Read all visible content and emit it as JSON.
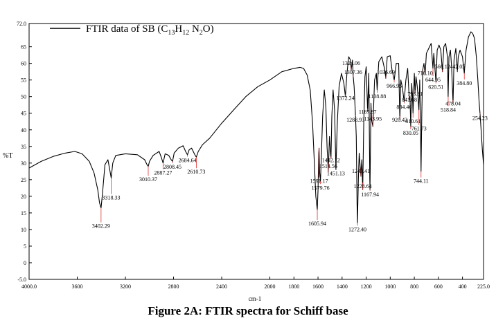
{
  "caption": "Figure 2A: FTIR spectra for Schiff base",
  "chart_data": {
    "type": "line",
    "title": "",
    "xlabel": "cm-1",
    "ylabel": "%T",
    "xlim": [
      4000,
      225
    ],
    "ylim": [
      -5,
      72
    ],
    "x_ticks": [
      {
        "value": 4000,
        "label": "4000.0"
      },
      {
        "value": 3600,
        "label": "3600"
      },
      {
        "value": 3200,
        "label": "3200"
      },
      {
        "value": 2800,
        "label": "2800"
      },
      {
        "value": 2400,
        "label": "2400"
      },
      {
        "value": 2000,
        "label": "2000"
      },
      {
        "value": 1800,
        "label": "1800"
      },
      {
        "value": 1600,
        "label": "1600"
      },
      {
        "value": 1400,
        "label": "1400"
      },
      {
        "value": 1200,
        "label": "1200"
      },
      {
        "value": 1000,
        "label": "1000"
      },
      {
        "value": 800,
        "label": "800"
      },
      {
        "value": 600,
        "label": "600"
      },
      {
        "value": 400,
        "label": "400"
      },
      {
        "value": 225,
        "label": "225.0"
      }
    ],
    "y_ticks": [
      {
        "value": -5,
        "label": "-5.0"
      },
      {
        "value": 0,
        "label": "0"
      },
      {
        "value": 5,
        "label": "5"
      },
      {
        "value": 10,
        "label": "10"
      },
      {
        "value": 15,
        "label": "15"
      },
      {
        "value": 20,
        "label": "20"
      },
      {
        "value": 25,
        "label": "25"
      },
      {
        "value": 30,
        "label": "30"
      },
      {
        "value": 35,
        "label": "35"
      },
      {
        "value": 40,
        "label": "40"
      },
      {
        "value": 45,
        "label": "45"
      },
      {
        "value": 50,
        "label": "50"
      },
      {
        "value": 55,
        "label": "55"
      },
      {
        "value": 60,
        "label": "60"
      },
      {
        "value": 65,
        "label": "65"
      },
      {
        "value": 72,
        "label": "72.0"
      }
    ],
    "legend": {
      "placement": "top-left",
      "text_main": "FTIR data of SB (C",
      "formula_parts": [
        "13",
        "H",
        "12",
        " N",
        "2",
        "O)"
      ]
    },
    "series": [
      {
        "points": [
          [
            4000,
            28.5
          ],
          [
            3900,
            30.5
          ],
          [
            3800,
            32.0
          ],
          [
            3700,
            33.0
          ],
          [
            3620,
            33.5
          ],
          [
            3560,
            32.8
          ],
          [
            3500,
            30.5
          ],
          [
            3460,
            27.0
          ],
          [
            3430,
            22.0
          ],
          [
            3415,
            18.0
          ],
          [
            3402.29,
            16.5
          ],
          [
            3390,
            21.0
          ],
          [
            3370,
            29.5
          ],
          [
            3345,
            31.0
          ],
          [
            3330,
            28.0
          ],
          [
            3318.33,
            25.5
          ],
          [
            3305,
            30.0
          ],
          [
            3280,
            32.3
          ],
          [
            3200,
            32.8
          ],
          [
            3100,
            32.5
          ],
          [
            3040,
            31.0
          ],
          [
            3020,
            29.5
          ],
          [
            3010.37,
            29.0
          ],
          [
            3000,
            30.5
          ],
          [
            2970,
            32.3
          ],
          [
            2920,
            33.5
          ],
          [
            2900,
            31.5
          ],
          [
            2887.27,
            30.0
          ],
          [
            2870,
            32.8
          ],
          [
            2840,
            32.3
          ],
          [
            2820,
            31.0
          ],
          [
            2808.45,
            30.5
          ],
          [
            2795,
            33.0
          ],
          [
            2760,
            34.5
          ],
          [
            2720,
            35.2
          ],
          [
            2700,
            33.5
          ],
          [
            2684.64,
            32.5
          ],
          [
            2670,
            34.0
          ],
          [
            2650,
            34.5
          ],
          [
            2630,
            33.0
          ],
          [
            2620,
            32.3
          ],
          [
            2610.73,
            31.8
          ],
          [
            2595,
            33.5
          ],
          [
            2560,
            35.5
          ],
          [
            2500,
            37.5
          ],
          [
            2400,
            42.0
          ],
          [
            2300,
            46.0
          ],
          [
            2200,
            50.0
          ],
          [
            2100,
            53.0
          ],
          [
            2000,
            55.0
          ],
          [
            1900,
            57.5
          ],
          [
            1800,
            58.5
          ],
          [
            1750,
            58.8
          ],
          [
            1720,
            58.5
          ],
          [
            1690,
            56.5
          ],
          [
            1665,
            52.0
          ],
          [
            1645,
            42.0
          ],
          [
            1630,
            30.0
          ],
          [
            1618,
            20.0
          ],
          [
            1605.94,
            16.0
          ],
          [
            1600,
            22.0
          ],
          [
            1594,
            33.0
          ],
          [
            1591.17,
            34.5
          ],
          [
            1586,
            27.0
          ],
          [
            1579.76,
            24.5
          ],
          [
            1572,
            32.0
          ],
          [
            1562,
            44.0
          ],
          [
            1548,
            52.0
          ],
          [
            1535,
            47.0
          ],
          [
            1525,
            35.0
          ],
          [
            1514.56,
            27.5
          ],
          [
            1505,
            38.0
          ],
          [
            1496,
            33.0
          ],
          [
            1492.12,
            31.5
          ],
          [
            1485,
            44.0
          ],
          [
            1475,
            52.0
          ],
          [
            1462,
            46.0
          ],
          [
            1451.13,
            28.0
          ],
          [
            1440,
            42.0
          ],
          [
            1425,
            53.0
          ],
          [
            1405,
            57.0
          ],
          [
            1385,
            54.0
          ],
          [
            1372.24,
            50.0
          ],
          [
            1360,
            57.0
          ],
          [
            1345,
            62.0
          ],
          [
            1330,
            61.0
          ],
          [
            1324.06,
            58.0
          ],
          [
            1314,
            61.0
          ],
          [
            1307.36,
            56.0
          ],
          [
            1300,
            53.0
          ],
          [
            1288.93,
            44.5
          ],
          [
            1282,
            38.0
          ],
          [
            1276,
            18.0
          ],
          [
            1272.4,
            12.0
          ],
          [
            1265,
            25.0
          ],
          [
            1258,
            33.0
          ],
          [
            1250,
            29.0
          ],
          [
            1243.41,
            26.0
          ],
          [
            1236,
            31.0
          ],
          [
            1228.64,
            22.0
          ],
          [
            1220,
            42.0
          ],
          [
            1210,
            56.0
          ],
          [
            1200,
            59.0
          ],
          [
            1187.87,
            45.5
          ],
          [
            1178,
            57.0
          ],
          [
            1170,
            25.0
          ],
          [
            1167.94,
            22.0
          ],
          [
            1160,
            48.0
          ],
          [
            1155,
            43.0
          ],
          [
            1143.95,
            41.0
          ],
          [
            1130,
            55.0
          ],
          [
            1115,
            57.0
          ],
          [
            1108.88,
            52.0
          ],
          [
            1095,
            60.5
          ],
          [
            1070,
            62.0
          ],
          [
            1045,
            58.0
          ],
          [
            1036.69,
            55.5
          ],
          [
            1025,
            62.0
          ],
          [
            1000,
            62.3
          ],
          [
            985,
            58.0
          ],
          [
            966.95,
            55.0
          ],
          [
            950,
            60.0
          ],
          [
            930,
            60.0
          ],
          [
            920.42,
            43.0
          ],
          [
            912,
            55.0
          ],
          [
            900,
            53.0
          ],
          [
            884.46,
            48.5
          ],
          [
            870,
            55.0
          ],
          [
            855,
            58.5
          ],
          [
            846,
            52.0
          ],
          [
            841.08,
            49.0
          ],
          [
            836,
            50.0
          ],
          [
            830.05,
            41.0
          ],
          [
            822,
            54.0
          ],
          [
            815,
            50.0
          ],
          [
            810.61,
            45.0
          ],
          [
            800,
            57.0
          ],
          [
            793.31,
            51.0
          ],
          [
            786,
            56.0
          ],
          [
            775,
            53.0
          ],
          [
            761.73,
            46.0
          ],
          [
            755,
            55.0
          ],
          [
            750,
            45.0
          ],
          [
            744.11,
            27.5
          ],
          [
            738,
            45.0
          ],
          [
            730,
            58.0
          ],
          [
            720,
            60.0
          ],
          [
            710.1,
            56.5
          ],
          [
            700,
            63.0
          ],
          [
            680,
            64.5
          ],
          [
            660,
            66.0
          ],
          [
            650,
            61.0
          ],
          [
            644.95,
            58.5
          ],
          [
            638,
            63.0
          ],
          [
            630,
            59.0
          ],
          [
            620.51,
            54.5
          ],
          [
            610,
            64.0
          ],
          [
            595,
            65.5
          ],
          [
            580,
            64.0
          ],
          [
            566.12,
            57.5
          ],
          [
            555,
            65.0
          ],
          [
            540,
            66.0
          ],
          [
            525,
            62.0
          ],
          [
            518.84,
            50.0
          ],
          [
            512,
            62.0
          ],
          [
            500,
            64.0
          ],
          [
            490,
            59.0
          ],
          [
            478.04,
            48.0
          ],
          [
            470,
            61.0
          ],
          [
            455,
            64.5
          ],
          [
            442.05,
            57.5
          ],
          [
            435,
            62.0
          ],
          [
            420,
            64.0
          ],
          [
            400,
            62.0
          ],
          [
            384.8,
            57.0
          ],
          [
            370,
            64.0
          ],
          [
            350,
            68.0
          ],
          [
            330,
            69.5
          ],
          [
            315,
            69.0
          ],
          [
            300,
            67.5
          ],
          [
            285,
            62.0
          ],
          [
            272,
            55.0
          ],
          [
            262,
            48.5
          ],
          [
            254.23,
            45.0
          ],
          [
            245,
            40.0
          ],
          [
            235,
            34.0
          ],
          [
            225,
            29.5
          ]
        ]
      }
    ],
    "annotations": [
      {
        "x": 3402.29,
        "y": 16.5,
        "label": "3402.29",
        "side": "below",
        "y_text": 10.5
      },
      {
        "x": 3318.33,
        "y": 25.5,
        "label": "3318.33",
        "side": "below",
        "y_text": 19.0
      },
      {
        "x": 3010.37,
        "y": 29.0,
        "label": "3010.37",
        "side": "below",
        "y_text": 24.5
      },
      {
        "x": 2887.27,
        "y": 30.0,
        "label": "2887.27",
        "side": "below",
        "y_text": 26.5
      },
      {
        "x": 2808.45,
        "y": 30.5,
        "label": "2808.45",
        "side": "below",
        "y_text": 28.3
      },
      {
        "x": 2684.64,
        "y": 32.5,
        "label": "2684.64",
        "side": "below",
        "y_text": 30.3
      },
      {
        "x": 2610.73,
        "y": 31.8,
        "label": "2610.73",
        "side": "below",
        "y_text": 26.8
      },
      {
        "x": 1605.94,
        "y": 16.0,
        "label": "1605.94",
        "side": "below",
        "y_text": 11.2
      },
      {
        "x": 1591.17,
        "y": 34.5,
        "label": "1591.17",
        "side": "below",
        "y_text": 24.0
      },
      {
        "x": 1579.76,
        "y": 24.5,
        "label": "1579.76",
        "side": "below",
        "y_text": 22.0
      },
      {
        "x": 1514.56,
        "y": 27.5,
        "label": "1514.56",
        "side": "below",
        "y_text": 28.5
      },
      {
        "x": 1492.12,
        "y": 31.5,
        "label": "1492.12",
        "side": "below",
        "y_text": 30.3
      },
      {
        "x": 1451.13,
        "y": 28.0,
        "label": "1451.13",
        "side": "below",
        "y_text": 26.3
      },
      {
        "x": 1372.24,
        "y": 50.0,
        "label": "1372.24",
        "side": "below",
        "y_text": 49.0
      },
      {
        "x": 1324.06,
        "y": 58.0,
        "label": "1324.06",
        "side": "above",
        "y_text": 59.5
      },
      {
        "x": 1307.36,
        "y": 56.0,
        "label": "1307.36",
        "side": "above",
        "y_text": 56.8
      },
      {
        "x": 1288.93,
        "y": 44.5,
        "label": "1288.93",
        "side": "below",
        "y_text": 42.5
      },
      {
        "x": 1272.4,
        "y": 12.0,
        "label": "1272.40",
        "side": "below",
        "y_text": 9.5
      },
      {
        "x": 1243.41,
        "y": 26.0,
        "label": "1243.41",
        "side": "below",
        "y_text": 27.0
      },
      {
        "x": 1228.64,
        "y": 22.0,
        "label": "1228.64",
        "side": "below",
        "y_text": 22.5
      },
      {
        "x": 1187.87,
        "y": 45.5,
        "label": "1187.87",
        "side": "below",
        "y_text": 44.8
      },
      {
        "x": 1167.94,
        "y": 22.0,
        "label": "1167.94",
        "side": "below",
        "y_text": 20.0
      },
      {
        "x": 1143.95,
        "y": 41.0,
        "label": "1143.95",
        "side": "below",
        "y_text": 42.8
      },
      {
        "x": 1108.88,
        "y": 52.0,
        "label": "1108.88",
        "side": "below",
        "y_text": 49.5
      },
      {
        "x": 1036.69,
        "y": 55.5,
        "label": "1036.69",
        "side": "above",
        "y_text": 56.8
      },
      {
        "x": 966.95,
        "y": 55.0,
        "label": "966.95",
        "side": "below",
        "y_text": 52.6
      },
      {
        "x": 920.42,
        "y": 43.0,
        "label": "920.42",
        "side": "below",
        "y_text": 42.5
      },
      {
        "x": 884.46,
        "y": 48.5,
        "label": "884.46",
        "side": "below",
        "y_text": 46.3
      },
      {
        "x": 841.08,
        "y": 49.0,
        "label": "841.08",
        "side": "below",
        "y_text": 48.5
      },
      {
        "x": 830.05,
        "y": 41.0,
        "label": "830.05",
        "side": "below",
        "y_text": 38.5
      },
      {
        "x": 810.61,
        "y": 45.0,
        "label": "810.61",
        "side": "below",
        "y_text": 42.0
      },
      {
        "x": 793.31,
        "y": 51.0,
        "label": "793.31",
        "side": "below",
        "y_text": 50.3
      },
      {
        "x": 761.73,
        "y": 46.0,
        "label": "761.73",
        "side": "below",
        "y_text": 39.8
      },
      {
        "x": 744.11,
        "y": 27.5,
        "label": "744.11",
        "side": "below",
        "y_text": 24.0
      },
      {
        "x": 710.1,
        "y": 56.5,
        "label": "710.10",
        "side": "below",
        "y_text": 56.5
      },
      {
        "x": 644.95,
        "y": 58.5,
        "label": "644.95",
        "side": "below",
        "y_text": 54.5
      },
      {
        "x": 620.51,
        "y": 54.5,
        "label": "620.51",
        "side": "below",
        "y_text": 52.3
      },
      {
        "x": 566.12,
        "y": 57.5,
        "label": "566.12",
        "side": "above",
        "y_text": 58.5
      },
      {
        "x": 518.84,
        "y": 50.0,
        "label": "518.84",
        "side": "below",
        "y_text": 45.5
      },
      {
        "x": 478.04,
        "y": 48.0,
        "label": "478.04",
        "side": "below",
        "y_text": 47.3
      },
      {
        "x": 442.05,
        "y": 57.5,
        "label": "442.05",
        "side": "above",
        "y_text": 58.5
      },
      {
        "x": 384.8,
        "y": 57.0,
        "label": "384.80",
        "side": "below",
        "y_text": 53.5
      },
      {
        "x": 254.23,
        "y": 45.0,
        "label": "254.23",
        "side": "below",
        "y_text": 43.0
      }
    ]
  }
}
